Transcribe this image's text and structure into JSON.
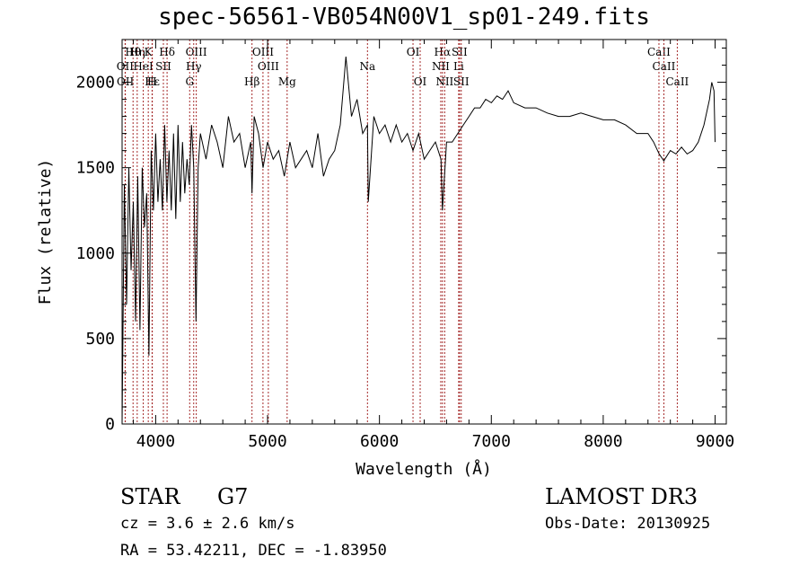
{
  "chart_data": {
    "type": "line",
    "title": "spec-56561-VB054N00V1_sp01-249.fits",
    "xlabel": "Wavelength (Å)",
    "ylabel": "Flux (relative)",
    "xlim": [
      3700,
      9100
    ],
    "ylim": [
      0,
      2250
    ],
    "xticks": [
      4000,
      5000,
      6000,
      7000,
      8000,
      9000
    ],
    "yticks": [
      0,
      500,
      1000,
      1500,
      2000
    ],
    "series": [
      {
        "name": "flux",
        "x": [
          3700,
          3720,
          3740,
          3760,
          3780,
          3800,
          3820,
          3840,
          3860,
          3880,
          3900,
          3920,
          3940,
          3960,
          3980,
          4000,
          4020,
          4040,
          4060,
          4080,
          4100,
          4120,
          4140,
          4160,
          4180,
          4200,
          4220,
          4240,
          4260,
          4280,
          4300,
          4320,
          4340,
          4360,
          4380,
          4400,
          4450,
          4500,
          4550,
          4600,
          4650,
          4700,
          4750,
          4800,
          4850,
          4861,
          4880,
          4920,
          4960,
          5000,
          5050,
          5100,
          5150,
          5200,
          5250,
          5300,
          5350,
          5400,
          5450,
          5500,
          5550,
          5600,
          5650,
          5700,
          5750,
          5800,
          5850,
          5893,
          5900,
          5950,
          6000,
          6050,
          6100,
          6150,
          6200,
          6250,
          6300,
          6350,
          6400,
          6450,
          6500,
          6550,
          6563,
          6600,
          6650,
          6700,
          6750,
          6800,
          6850,
          6900,
          6950,
          7000,
          7050,
          7100,
          7150,
          7200,
          7300,
          7400,
          7500,
          7600,
          7700,
          7800,
          7900,
          8000,
          8100,
          8200,
          8300,
          8400,
          8450,
          8500,
          8542,
          8550,
          8600,
          8650,
          8700,
          8750,
          8800,
          8850,
          8900,
          8950,
          8970,
          8990,
          9000
        ],
        "y": [
          0,
          1400,
          700,
          1500,
          900,
          1300,
          600,
          1450,
          550,
          1500,
          1150,
          1350,
          400,
          1600,
          1250,
          1700,
          1300,
          1550,
          1250,
          1750,
          1300,
          1600,
          1250,
          1700,
          1200,
          1750,
          1300,
          1650,
          1350,
          1550,
          1400,
          1750,
          1500,
          600,
          1500,
          1700,
          1550,
          1750,
          1650,
          1500,
          1800,
          1650,
          1700,
          1500,
          1650,
          1350,
          1800,
          1700,
          1500,
          1650,
          1550,
          1600,
          1450,
          1650,
          1500,
          1550,
          1600,
          1500,
          1700,
          1450,
          1550,
          1600,
          1750,
          2150,
          1800,
          1900,
          1700,
          1750,
          1300,
          1800,
          1700,
          1750,
          1650,
          1750,
          1650,
          1700,
          1600,
          1700,
          1550,
          1600,
          1650,
          1550,
          1250,
          1650,
          1650,
          1700,
          1750,
          1800,
          1850,
          1850,
          1900,
          1880,
          1920,
          1900,
          1950,
          1880,
          1850,
          1850,
          1820,
          1800,
          1800,
          1820,
          1800,
          1780,
          1780,
          1750,
          1700,
          1700,
          1650,
          1580,
          1540,
          1550,
          1600,
          1580,
          1620,
          1580,
          1600,
          1650,
          1750,
          1900,
          2000,
          1950,
          1650
        ]
      }
    ],
    "emission_lines": {
      "top": [
        {
          "label": "Hθ",
          "x": 3798
        },
        {
          "label": "Hη",
          "x": 3835
        },
        {
          "label": "K",
          "x": 3934
        },
        {
          "label": "Hδ",
          "x": 4102
        },
        {
          "label": "OIII",
          "x": 4363
        },
        {
          "label": "OIII",
          "x": 4959
        },
        {
          "label": "OI",
          "x": 6300
        },
        {
          "label": "Hα",
          "x": 6563
        },
        {
          "label": "SII",
          "x": 6716
        },
        {
          "label": "CaII",
          "x": 8498
        }
      ],
      "middle": [
        {
          "label": "OII",
          "x": 3727
        },
        {
          "label": "HeI",
          "x": 3889
        },
        {
          "label": "SII",
          "x": 4069
        },
        {
          "label": "Hγ",
          "x": 4340
        },
        {
          "label": "OIII",
          "x": 5007
        },
        {
          "label": "Na",
          "x": 5893
        },
        {
          "label": "NII",
          "x": 6548
        },
        {
          "label": "Li",
          "x": 6708
        },
        {
          "label": "CaII",
          "x": 8542
        }
      ],
      "bottom": [
        {
          "label": "OII",
          "x": 3729
        },
        {
          "label": "Hε",
          "x": 3970
        },
        {
          "label": "H",
          "x": 3968
        },
        {
          "label": "G",
          "x": 4304
        },
        {
          "label": "Hβ",
          "x": 4861
        },
        {
          "label": "Mg",
          "x": 5175
        },
        {
          "label": "OI",
          "x": 6364
        },
        {
          "label": "NII",
          "x": 6583
        },
        {
          "label": "SII",
          "x": 6731
        },
        {
          "label": "CaII",
          "x": 8662
        }
      ]
    }
  },
  "info": {
    "object_class": "STAR",
    "subclass": "G7",
    "redshift": "cz = 3.6 ± 2.6 km/s",
    "coords": "RA =  53.42211, DEC =  -1.83950",
    "survey": "LAMOST DR3",
    "obs_date": "Obs-Date: 20130925"
  }
}
